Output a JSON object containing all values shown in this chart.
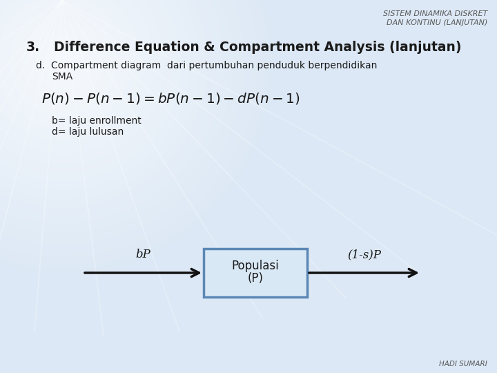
{
  "title_line1": "SISTEM DINAMIKA DISKRET",
  "title_line2": "DAN KONTINU (LANJUTAN)",
  "heading_num": "3.",
  "heading_text": "Difference Equation & Compartment Analysis (lanjutan)",
  "sub_d_line1": "d.  Compartment diagram  dari pertumbuhan penduduk berpendidikan",
  "sub_d_line2": "SMA",
  "note_b": "b= laju enrollment",
  "note_d": "d= laju lulusan",
  "box_label_1": "Populasi",
  "box_label_2": "(P)",
  "arrow_left_label": "bP",
  "arrow_right_label": "(1-s)P",
  "footer": "HADI SUMARI",
  "bg_color": "#dce8f5",
  "title_color": "#595959",
  "text_color": "#1a1a1a",
  "box_facecolor": "#d9e8f5",
  "box_border_color": "#5b87b5",
  "arrow_color": "#111111"
}
